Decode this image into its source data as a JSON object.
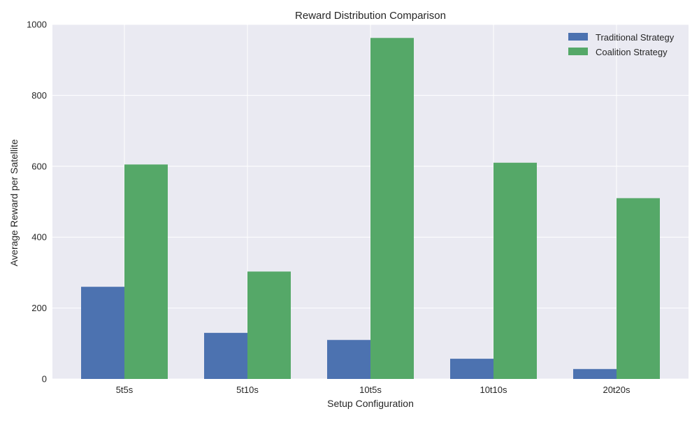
{
  "chart_data": {
    "type": "bar",
    "title": "Reward Distribution Comparison",
    "xlabel": "Setup Configuration",
    "ylabel": "Average Reward per Satellite",
    "categories": [
      "5t5s",
      "5t10s",
      "10t5s",
      "10t10s",
      "20t20s"
    ],
    "series": [
      {
        "name": "Traditional Strategy",
        "color": "#4c72b0",
        "values": [
          260,
          130,
          110,
          57,
          28
        ]
      },
      {
        "name": "Coalition Strategy",
        "color": "#55a868",
        "values": [
          605,
          303,
          962,
          610,
          510
        ]
      }
    ],
    "ylim": [
      0,
      1000
    ],
    "yticks": [
      0,
      200,
      400,
      600,
      800,
      1000
    ],
    "grid": true,
    "legend_position": "top-right",
    "background_color": "#eaeaf2",
    "grid_color": "#ffffff"
  }
}
